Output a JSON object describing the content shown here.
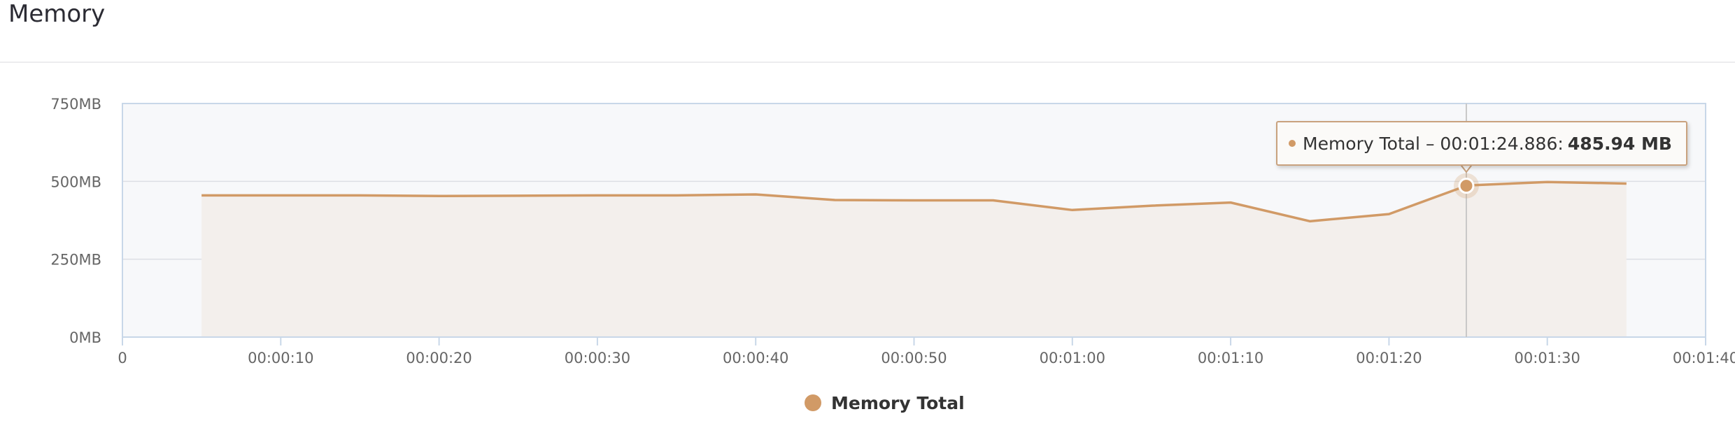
{
  "panel": {
    "title": "Memory"
  },
  "colors": {
    "series": "#d19a66",
    "fill": "#f3efec",
    "plot_bg": "#f7f8fa",
    "axis": "#c8d7e8"
  },
  "tooltip": {
    "series": "Memory Total",
    "time": "00:01:24.886",
    "value_text": "485.94 MB"
  },
  "legend": {
    "items": [
      {
        "label": "Memory Total"
      }
    ]
  },
  "chart_data": {
    "type": "area",
    "title": "",
    "xlabel": "",
    "ylabel": "",
    "x_unit": "seconds",
    "xlim": [
      0,
      100
    ],
    "ylim": [
      0,
      750
    ],
    "y_unit": "MB",
    "grid": true,
    "legend_position": "bottom-center",
    "x_ticks": [
      {
        "value": 0,
        "label": "0"
      },
      {
        "value": 10,
        "label": "00:00:10"
      },
      {
        "value": 20,
        "label": "00:00:20"
      },
      {
        "value": 30,
        "label": "00:00:30"
      },
      {
        "value": 40,
        "label": "00:00:40"
      },
      {
        "value": 50,
        "label": "00:00:50"
      },
      {
        "value": 60,
        "label": "00:01:00"
      },
      {
        "value": 70,
        "label": "00:01:10"
      },
      {
        "value": 80,
        "label": "00:01:20"
      },
      {
        "value": 90,
        "label": "00:01:30"
      },
      {
        "value": 100,
        "label": "00:01:40"
      }
    ],
    "y_ticks": [
      {
        "value": 0,
        "label": "0MB"
      },
      {
        "value": 250,
        "label": "250MB"
      },
      {
        "value": 500,
        "label": "500MB"
      },
      {
        "value": 750,
        "label": "750MB"
      }
    ],
    "series": [
      {
        "name": "Memory Total",
        "x": [
          5,
          10,
          15,
          20,
          25,
          30,
          35,
          40,
          45,
          50,
          55,
          60,
          65,
          70,
          75,
          80,
          84.886,
          85,
          90,
          95
        ],
        "y": [
          455,
          455,
          455,
          453,
          454,
          455,
          455,
          458,
          440,
          439,
          439,
          408,
          422,
          432,
          372,
          395,
          485.94,
          487,
          498,
          493
        ]
      }
    ],
    "highlight": {
      "x": 84.886,
      "y": 485.94
    }
  }
}
